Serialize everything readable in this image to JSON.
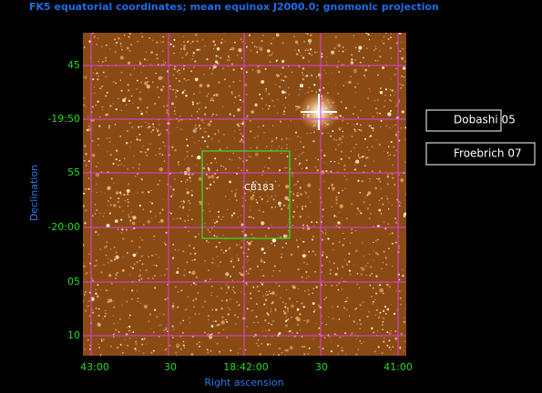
{
  "header": {
    "title": "FK5 equatorial coordinates; mean equinox J2000.0; gnomonic projection"
  },
  "x_axis": {
    "label": "Right ascension",
    "ticks": [
      "43:00",
      "30",
      "18:42:00",
      "30",
      "41:00"
    ]
  },
  "y_axis": {
    "label": "Declination",
    "ticks": [
      "45",
      "-19:50",
      "55",
      "-20:00",
      "05",
      "10"
    ]
  },
  "object_label": "CB183",
  "buttons": [
    "Dobashi 05",
    "Froebrich 07"
  ]
}
